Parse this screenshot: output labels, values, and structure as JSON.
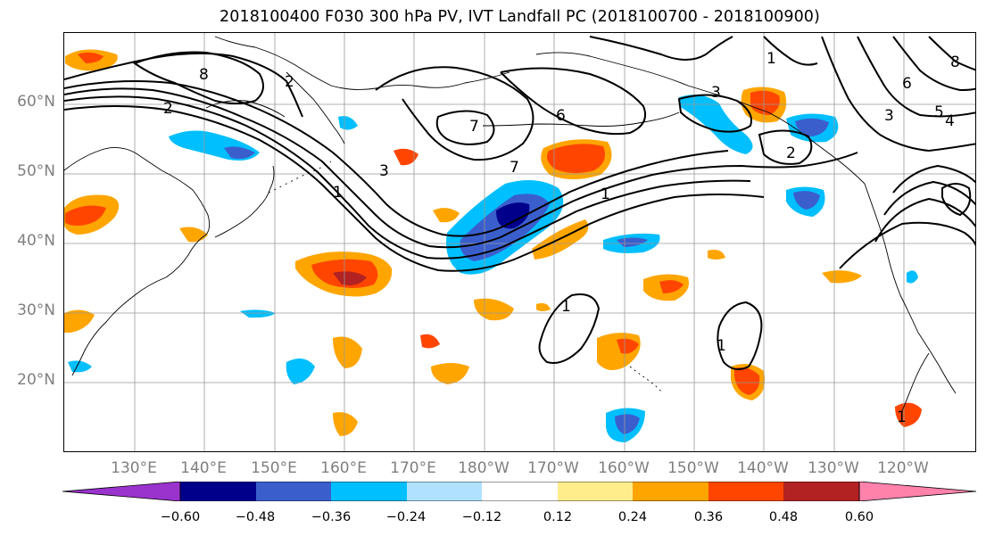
{
  "title": "2018100400 F030 300 hPa PV, IVT Landfall PC (2018100700 - 2018100900)",
  "map": {
    "lat_labels": [
      "60°N",
      "50°N",
      "40°N",
      "30°N",
      "20°N"
    ],
    "lon_labels": [
      "130°E",
      "140°E",
      "150°E",
      "160°E",
      "170°E",
      "180°W",
      "170°W",
      "160°W",
      "150°W",
      "140°W",
      "130°W",
      "120°W"
    ],
    "contour_labels": [
      "8",
      "2",
      "2",
      "1",
      "3",
      "7",
      "6",
      "3",
      "2",
      "1",
      "1",
      "1",
      "5",
      "4",
      "3",
      "1",
      "8",
      "6",
      "1",
      "7"
    ],
    "colors": {
      "neg_060": "#9a32cd",
      "neg_048": "#00008b",
      "neg_036": "#3a5fcd",
      "neg_024": "#00bfff",
      "neg_012": "#b0e2ff",
      "neutral": "#ffffff",
      "pos_012": "#ffec8b",
      "pos_024": "#ffa500",
      "pos_036": "#ff4500",
      "pos_048": "#b22222",
      "pos_060": "#ff82ab"
    }
  },
  "colorbar": {
    "ticks": [
      "−0.60",
      "−0.48",
      "−0.36",
      "−0.24",
      "−0.12",
      "0.12",
      "0.24",
      "0.36",
      "0.48",
      "0.60"
    ]
  }
}
